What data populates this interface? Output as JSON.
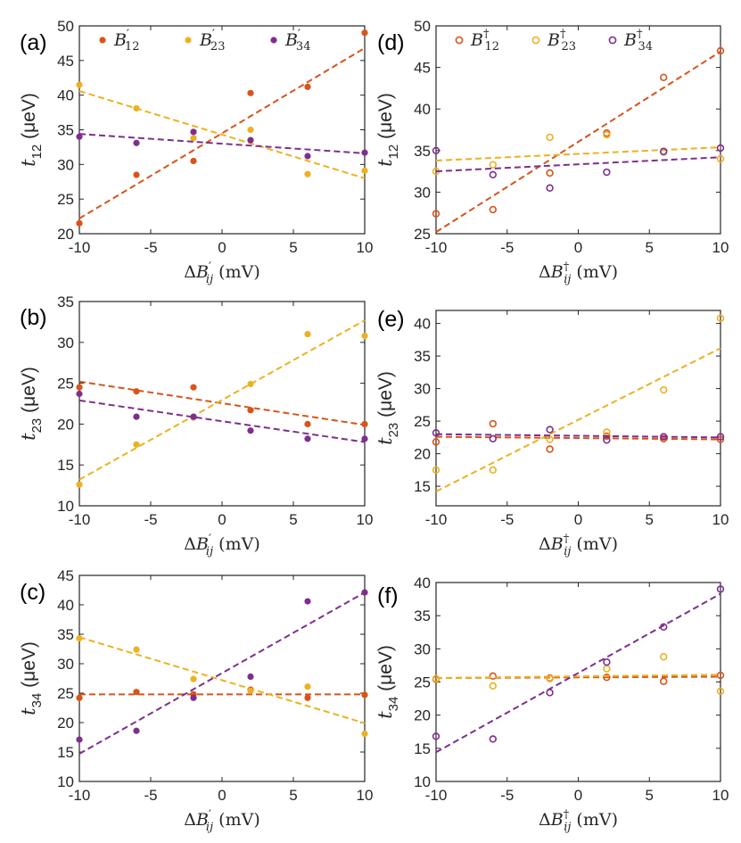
{
  "colors": {
    "B12": "#d95319",
    "B23": "#edb120",
    "B34": "#7e2f8e",
    "axis": "#262626"
  },
  "legend_sets": {
    "prime": [
      {
        "key": "B12",
        "base": "B",
        "sup": "′",
        "sub": "12"
      },
      {
        "key": "B23",
        "base": "B",
        "sup": "′",
        "sub": "23"
      },
      {
        "key": "B34",
        "base": "B",
        "sup": "′",
        "sub": "34"
      }
    ],
    "dagger": [
      {
        "key": "B12",
        "base": "B",
        "sup": "†",
        "sub": "12"
      },
      {
        "key": "B23",
        "base": "B",
        "sup": "†",
        "sub": "23"
      },
      {
        "key": "B34",
        "base": "B",
        "sup": "†",
        "sub": "34"
      }
    ]
  },
  "chart_data": [
    {
      "type": "scatter",
      "panel": "(a)",
      "marker": "filled",
      "ylabel": {
        "base": "t",
        "sub": "12",
        "unit": " (μeV)"
      },
      "xlabel": {
        "pre": "Δ",
        "base": "B",
        "sup": "′",
        "sub": "ij",
        "unit": " (mV)"
      },
      "xlim": [
        -10,
        10
      ],
      "ylim": [
        20,
        50
      ],
      "xticks": [
        -10,
        -5,
        0,
        5,
        10
      ],
      "yticks": [
        20,
        25,
        30,
        35,
        40,
        45,
        50
      ],
      "xticklabels": [
        "-10",
        "-5",
        "0",
        "5",
        "10"
      ],
      "yticklabels": [
        "20",
        "25",
        "30",
        "35",
        "40",
        "45",
        "50"
      ],
      "legend": "prime",
      "series": [
        {
          "key": "B12",
          "x": [
            -10,
            -6,
            -2,
            2,
            6,
            10
          ],
          "y": [
            21.5,
            28.5,
            30.5,
            40.3,
            41.2,
            49.0
          ],
          "fit": [
            22.2,
            46.8
          ]
        },
        {
          "key": "B23",
          "x": [
            -10,
            -6,
            -2,
            2,
            6,
            10
          ],
          "y": [
            41.5,
            38.1,
            33.8,
            35.0,
            28.6,
            29.1
          ],
          "fit": [
            40.6,
            28.0
          ]
        },
        {
          "key": "B34",
          "x": [
            -10,
            -6,
            -2,
            2,
            6,
            10
          ],
          "y": [
            34.0,
            33.1,
            34.7,
            33.5,
            31.2,
            31.7
          ],
          "fit": [
            34.4,
            31.6
          ]
        }
      ]
    },
    {
      "type": "scatter",
      "panel": "(b)",
      "marker": "filled",
      "ylabel": {
        "base": "t",
        "sub": "23",
        "unit": " (μeV)"
      },
      "xlabel": {
        "pre": "Δ",
        "base": "B",
        "sup": "′",
        "sub": "ij",
        "unit": " (mV)"
      },
      "xlim": [
        -10,
        10
      ],
      "ylim": [
        10,
        35
      ],
      "xticks": [
        -10,
        -5,
        0,
        5,
        10
      ],
      "yticks": [
        10,
        15,
        20,
        25,
        30,
        35
      ],
      "xticklabels": [
        "-10",
        "-5",
        "0",
        "5",
        "10"
      ],
      "yticklabels": [
        "10",
        "15",
        "20",
        "25",
        "30",
        "35"
      ],
      "legend": null,
      "series": [
        {
          "key": "B12",
          "x": [
            -10,
            -6,
            -2,
            2,
            6,
            10
          ],
          "y": [
            24.5,
            24.0,
            24.5,
            21.7,
            20.0,
            20.0
          ],
          "fit": [
            25.2,
            19.9
          ]
        },
        {
          "key": "B23",
          "x": [
            -10,
            -6,
            -2,
            2,
            6,
            10
          ],
          "y": [
            12.6,
            17.5,
            20.8,
            24.9,
            31.0,
            30.8
          ],
          "fit": [
            13.2,
            32.7
          ]
        },
        {
          "key": "B34",
          "x": [
            -10,
            -6,
            -2,
            2,
            6,
            10
          ],
          "y": [
            23.7,
            20.9,
            20.9,
            19.2,
            18.2,
            18.2
          ],
          "fit": [
            22.9,
            17.8
          ]
        }
      ]
    },
    {
      "type": "scatter",
      "panel": "(c)",
      "marker": "filled",
      "ylabel": {
        "base": "t",
        "sub": "34",
        "unit": " (μeV)"
      },
      "xlabel": {
        "pre": "Δ",
        "base": "B",
        "sup": "′",
        "sub": "ij",
        "unit": " (mV)"
      },
      "xlim": [
        -10,
        10
      ],
      "ylim": [
        10,
        45
      ],
      "xticks": [
        -10,
        -5,
        0,
        5,
        10
      ],
      "yticks": [
        10,
        15,
        20,
        25,
        30,
        35,
        40,
        45
      ],
      "xticklabels": [
        "-10",
        "-5",
        "0",
        "5",
        "10"
      ],
      "yticklabels": [
        "10",
        "15",
        "20",
        "25",
        "30",
        "35",
        "40",
        "45"
      ],
      "legend": null,
      "series": [
        {
          "key": "B12",
          "x": [
            -10,
            -6,
            -2,
            2,
            6,
            10
          ],
          "y": [
            24.2,
            25.2,
            24.8,
            25.6,
            24.2,
            24.7
          ],
          "fit": [
            24.8,
            24.8
          ]
        },
        {
          "key": "B23",
          "x": [
            -10,
            -6,
            -2,
            2,
            6,
            10
          ],
          "y": [
            34.3,
            32.4,
            27.4,
            25.4,
            26.1,
            18.1
          ],
          "fit": [
            34.5,
            19.9
          ]
        },
        {
          "key": "B34",
          "x": [
            -10,
            -6,
            -2,
            2,
            6,
            10
          ],
          "y": [
            17.1,
            18.6,
            24.2,
            27.8,
            40.6,
            42.1
          ],
          "fit": [
            14.7,
            42.1
          ]
        }
      ]
    },
    {
      "type": "scatter",
      "panel": "(d)",
      "marker": "open",
      "ylabel": {
        "base": "t",
        "sub": "12",
        "unit": " (μeV)"
      },
      "xlabel": {
        "pre": "Δ",
        "base": "B",
        "sup": "†",
        "sub": "ij",
        "unit": " (mV)"
      },
      "xlim": [
        -10,
        10
      ],
      "ylim": [
        25,
        50
      ],
      "xticks": [
        -10,
        -5,
        0,
        5,
        10
      ],
      "yticks": [
        25,
        30,
        35,
        40,
        45,
        50
      ],
      "xticklabels": [
        "-10",
        "-5",
        "0",
        "5",
        "10"
      ],
      "yticklabels": [
        "25",
        "30",
        "35",
        "40",
        "45",
        "50"
      ],
      "legend": "dagger",
      "series": [
        {
          "key": "B12",
          "x": [
            -10,
            -6,
            -2,
            2,
            6,
            10
          ],
          "y": [
            27.4,
            27.9,
            32.3,
            37.1,
            43.8,
            47.0
          ],
          "fit": [
            25.2,
            46.9
          ]
        },
        {
          "key": "B23",
          "x": [
            -10,
            -6,
            -2,
            2,
            6,
            10
          ],
          "y": [
            32.5,
            33.3,
            36.6,
            36.9,
            34.8,
            34.0
          ],
          "fit": [
            33.8,
            35.4
          ]
        },
        {
          "key": "B34",
          "x": [
            -10,
            -6,
            -2,
            2,
            6,
            10
          ],
          "y": [
            35.0,
            32.1,
            30.5,
            32.4,
            34.9,
            35.3
          ],
          "fit": [
            32.5,
            34.2
          ]
        }
      ]
    },
    {
      "type": "scatter",
      "panel": "(e)",
      "marker": "open",
      "ylabel": {
        "base": "t",
        "sub": "23",
        "unit": " (μeV)"
      },
      "xlabel": {
        "pre": "Δ",
        "base": "B",
        "sup": "†",
        "sub": "ij",
        "unit": " (mV)"
      },
      "xlim": [
        -10,
        10
      ],
      "ylim": [
        12,
        42
      ],
      "xticks": [
        -10,
        -5,
        0,
        5,
        10
      ],
      "yticks": [
        15,
        20,
        25,
        30,
        35,
        40
      ],
      "xticklabels": [
        "-10",
        "-5",
        "0",
        "5",
        "10"
      ],
      "yticklabels": [
        "15",
        "20",
        "25",
        "30",
        "35",
        "40"
      ],
      "legend": null,
      "series": [
        {
          "key": "B12",
          "x": [
            -10,
            -6,
            -2,
            2,
            6,
            10
          ],
          "y": [
            21.8,
            24.6,
            20.7,
            22.7,
            22.3,
            22.2
          ],
          "fit": [
            22.6,
            22.2
          ]
        },
        {
          "key": "B23",
          "x": [
            -10,
            -6,
            -2,
            2,
            6,
            10
          ],
          "y": [
            17.5,
            17.5,
            22.2,
            23.3,
            29.8,
            40.8
          ],
          "fit": [
            14.2,
            36.2
          ]
        },
        {
          "key": "B34",
          "x": [
            -10,
            -6,
            -2,
            2,
            6,
            10
          ],
          "y": [
            23.2,
            22.3,
            23.7,
            22.1,
            22.6,
            22.6
          ],
          "fit": [
            23.0,
            22.5
          ]
        }
      ]
    },
    {
      "type": "scatter",
      "panel": "(f)",
      "marker": "open",
      "ylabel": {
        "base": "t",
        "sub": "34",
        "unit": " (μeV)"
      },
      "xlabel": {
        "pre": "Δ",
        "base": "B",
        "sup": "†",
        "sub": "ij",
        "unit": " (mV)"
      },
      "xlim": [
        -10,
        10
      ],
      "ylim": [
        10,
        40
      ],
      "xticks": [
        -10,
        -5,
        0,
        5,
        10
      ],
      "yticks": [
        10,
        15,
        20,
        25,
        30,
        35,
        40
      ],
      "xticklabels": [
        "-10",
        "-5",
        "0",
        "5",
        "10"
      ],
      "yticklabels": [
        "10",
        "15",
        "20",
        "25",
        "30",
        "35",
        "40"
      ],
      "legend": null,
      "series": [
        {
          "key": "B12",
          "x": [
            -10,
            -6,
            -2,
            2,
            6,
            10
          ],
          "y": [
            25.4,
            25.9,
            25.6,
            25.7,
            25.1,
            26.0
          ],
          "fit": [
            25.6,
            25.8
          ]
        },
        {
          "key": "B23",
          "x": [
            -10,
            -6,
            -2,
            2,
            6,
            10
          ],
          "y": [
            25.5,
            24.4,
            25.5,
            27.0,
            28.8,
            23.6
          ],
          "fit": [
            25.6,
            26.1
          ]
        },
        {
          "key": "B34",
          "x": [
            -10,
            -6,
            -2,
            2,
            6,
            10
          ],
          "y": [
            16.8,
            16.4,
            23.4,
            28.0,
            33.3,
            39.0
          ],
          "fit": [
            14.4,
            38.3
          ]
        }
      ]
    }
  ]
}
